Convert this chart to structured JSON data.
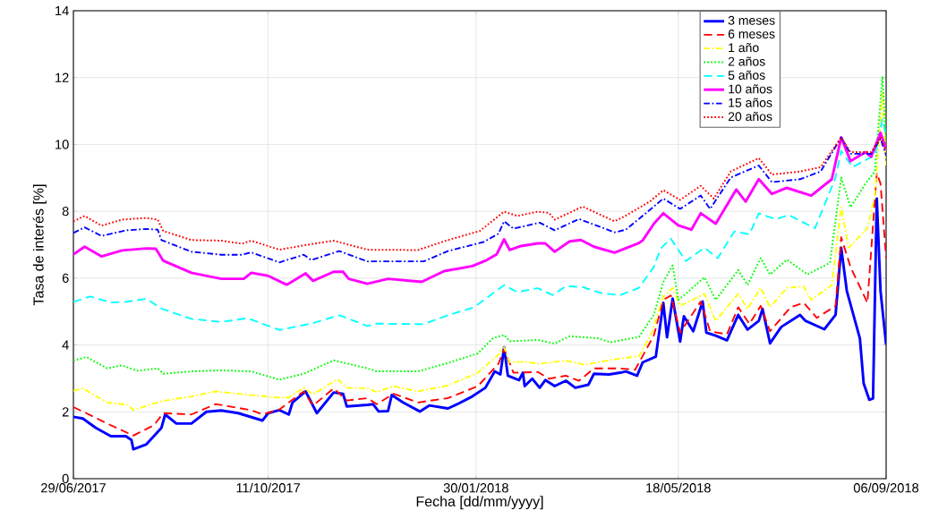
{
  "chart_data": {
    "type": "line",
    "xlabel": "Fecha [dd/mm/yyyy]",
    "ylabel": "Tasa de interés [%]",
    "xlim": [
      "2017-06-29",
      "2018-09-06"
    ],
    "xticks": [
      {
        "value": "2017-06-29",
        "label": "29/06/2017"
      },
      {
        "value": "2017-10-11",
        "label": "11/10/2017"
      },
      {
        "value": "2018-01-30",
        "label": "30/01/2018"
      },
      {
        "value": "2018-05-18",
        "label": "18/05/2018"
      },
      {
        "value": "2018-09-06",
        "label": "06/09/2018"
      }
    ],
    "ylim": [
      0,
      14
    ],
    "yticks": [
      0,
      2,
      4,
      6,
      8,
      10,
      12,
      14
    ],
    "grid": true,
    "legend": "top right",
    "series": [
      {
        "name": "3 meses",
        "color": "#0000ff",
        "line_style": "solid",
        "x": [
          "2017-06-29",
          "2017-07-04",
          "2017-07-11",
          "2017-07-19",
          "2017-07-27",
          "2017-07-30",
          "2017-07-31",
          "2017-08-07",
          "2017-08-15",
          "2017-08-17",
          "2017-08-23",
          "2017-08-31",
          "2017-09-08",
          "2017-09-16",
          "2017-09-25",
          "2017-10-08",
          "2017-10-11",
          "2017-10-17",
          "2017-10-22",
          "2017-10-24",
          "2017-10-31",
          "2017-11-06",
          "2017-11-15",
          "2017-11-20",
          "2017-11-22",
          "2017-12-03",
          "2017-12-06",
          "2017-12-09",
          "2017-12-14",
          "2017-12-16",
          "2017-12-22",
          "2017-12-31",
          "2018-01-05",
          "2018-01-15",
          "2018-01-20",
          "2018-01-28",
          "2018-02-04",
          "2018-02-09",
          "2018-02-12",
          "2018-02-14",
          "2018-02-16",
          "2018-02-22",
          "2018-02-24",
          "2018-02-25",
          "2018-03-01",
          "2018-03-05",
          "2018-03-08",
          "2018-03-13",
          "2018-03-19",
          "2018-03-24",
          "2018-03-31",
          "2018-04-03",
          "2018-04-11",
          "2018-04-17",
          "2018-04-20",
          "2018-04-26",
          "2018-04-29",
          "2018-05-06",
          "2018-05-10",
          "2018-05-12",
          "2018-05-15",
          "2018-05-19",
          "2018-05-21",
          "2018-05-26",
          "2018-05-31",
          "2018-06-02",
          "2018-06-07",
          "2018-06-13",
          "2018-06-19",
          "2018-06-24",
          "2018-06-30",
          "2018-07-02",
          "2018-07-06",
          "2018-07-12",
          "2018-07-22",
          "2018-07-25",
          "2018-08-04",
          "2018-08-10",
          "2018-08-13",
          "2018-08-16",
          "2018-08-23",
          "2018-08-25",
          "2018-08-28",
          "2018-08-30",
          "2018-09-01",
          "2018-09-03",
          "2018-09-06"
        ],
        "values": [
          1.85,
          1.8,
          1.52,
          1.27,
          1.27,
          1.16,
          0.88,
          1.03,
          1.52,
          1.92,
          1.65,
          1.65,
          2.0,
          2.04,
          1.96,
          1.74,
          1.96,
          2.05,
          1.92,
          2.28,
          2.61,
          1.96,
          2.58,
          2.54,
          2.16,
          2.21,
          2.23,
          2.01,
          2.02,
          2.5,
          2.28,
          2.01,
          2.19,
          2.1,
          2.23,
          2.46,
          2.72,
          3.21,
          3.12,
          3.93,
          3.08,
          2.95,
          3.17,
          2.77,
          2.99,
          2.72,
          2.95,
          2.77,
          2.93,
          2.72,
          2.81,
          3.14,
          3.12,
          3.17,
          3.21,
          3.08,
          3.48,
          3.65,
          5.26,
          4.23,
          5.39,
          4.1,
          4.86,
          4.41,
          5.3,
          4.37,
          4.28,
          4.14,
          4.9,
          4.46,
          4.72,
          5.08,
          4.05,
          4.54,
          4.9,
          4.72,
          4.47,
          4.9,
          6.91,
          5.62,
          4.19,
          2.85,
          2.36,
          2.4,
          8.38,
          5.62,
          4.01
        ]
      },
      {
        "name": "6 meses",
        "color": "#ff0000",
        "line_style": "dashed",
        "x": [
          "2017-06-29",
          "2017-07-04",
          "2017-07-17",
          "2017-07-31",
          "2017-08-11",
          "2017-08-16",
          "2017-08-31",
          "2017-09-13",
          "2017-10-02",
          "2017-10-08",
          "2017-10-17",
          "2017-10-30",
          "2017-11-04",
          "2017-11-15",
          "2017-11-22",
          "2017-12-03",
          "2017-12-08",
          "2017-12-17",
          "2017-12-30",
          "2018-01-15",
          "2018-01-31",
          "2018-02-11",
          "2018-02-14",
          "2018-02-19",
          "2018-03-04",
          "2018-03-10",
          "2018-03-19",
          "2018-03-26",
          "2018-04-03",
          "2018-04-16",
          "2018-04-25",
          "2018-05-05",
          "2018-05-10",
          "2018-05-14",
          "2018-05-19",
          "2018-05-30",
          "2018-06-04",
          "2018-06-13",
          "2018-06-19",
          "2018-06-25",
          "2018-07-01",
          "2018-07-06",
          "2018-07-17",
          "2018-07-24",
          "2018-07-31",
          "2018-08-10",
          "2018-08-13",
          "2018-08-18",
          "2018-08-27",
          "2018-09-01",
          "2018-09-03",
          "2018-09-06"
        ],
        "values": [
          2.14,
          2.01,
          1.65,
          1.29,
          1.6,
          1.96,
          1.92,
          2.23,
          2.05,
          1.92,
          2.07,
          2.61,
          2.19,
          2.7,
          2.34,
          2.41,
          2.23,
          2.54,
          2.28,
          2.41,
          2.77,
          3.44,
          3.88,
          3.17,
          3.19,
          2.99,
          3.08,
          2.93,
          3.3,
          3.3,
          3.26,
          4.29,
          5.35,
          5.48,
          4.37,
          5.3,
          4.41,
          4.32,
          5.13,
          4.63,
          5.17,
          4.41,
          5.13,
          5.26,
          4.81,
          5.17,
          7.22,
          6.33,
          5.26,
          9.14,
          8.83,
          6.6
        ]
      },
      {
        "name": "1 año",
        "color": "#ffff00",
        "line_style": "dashdot",
        "x": [
          "2017-06-29",
          "2017-07-04",
          "2017-07-17",
          "2017-07-28",
          "2017-07-31",
          "2017-08-15",
          "2017-08-31",
          "2017-09-13",
          "2017-10-02",
          "2017-10-15",
          "2017-10-22",
          "2017-10-30",
          "2017-11-04",
          "2017-11-17",
          "2017-11-22",
          "2017-12-03",
          "2017-12-08",
          "2017-12-17",
          "2017-12-30",
          "2018-01-15",
          "2018-01-31",
          "2018-02-11",
          "2018-02-14",
          "2018-02-17",
          "2018-02-25",
          "2018-03-04",
          "2018-03-19",
          "2018-03-29",
          "2018-04-14",
          "2018-04-27",
          "2018-05-04",
          "2018-05-10",
          "2018-05-15",
          "2018-05-19",
          "2018-06-01",
          "2018-06-07",
          "2018-06-19",
          "2018-06-24",
          "2018-07-01",
          "2018-07-06",
          "2018-07-15",
          "2018-07-24",
          "2018-07-28",
          "2018-08-08",
          "2018-08-13",
          "2018-08-17",
          "2018-08-27",
          "2018-08-31",
          "2018-09-04",
          "2018-09-06"
        ],
        "values": [
          2.63,
          2.7,
          2.28,
          2.21,
          2.05,
          2.32,
          2.46,
          2.61,
          2.5,
          2.43,
          2.43,
          2.72,
          2.52,
          2.98,
          2.72,
          2.7,
          2.59,
          2.77,
          2.61,
          2.79,
          3.17,
          3.71,
          3.93,
          3.48,
          3.5,
          3.44,
          3.53,
          3.41,
          3.57,
          3.66,
          4.38,
          5.44,
          5.71,
          5.17,
          5.53,
          4.72,
          5.53,
          5.08,
          5.71,
          5.13,
          5.71,
          5.75,
          5.35,
          5.79,
          8.12,
          6.91,
          7.49,
          8.47,
          11.55,
          9.37
        ]
      },
      {
        "name": "2 años",
        "color": "#00ff00",
        "line_style": "dotted",
        "x": [
          "2017-06-29",
          "2017-07-06",
          "2017-07-17",
          "2017-07-25",
          "2017-08-02",
          "2017-08-13",
          "2017-08-16",
          "2017-08-31",
          "2017-09-16",
          "2017-10-02",
          "2017-10-17",
          "2017-10-30",
          "2017-11-15",
          "2017-12-03",
          "2017-12-08",
          "2017-12-30",
          "2018-01-15",
          "2018-01-31",
          "2018-02-08",
          "2018-02-14",
          "2018-02-17",
          "2018-03-04",
          "2018-03-13",
          "2018-03-21",
          "2018-04-05",
          "2018-04-12",
          "2018-04-27",
          "2018-05-05",
          "2018-05-10",
          "2018-05-15",
          "2018-05-18",
          "2018-05-22",
          "2018-06-01",
          "2018-06-07",
          "2018-06-19",
          "2018-06-24",
          "2018-07-01",
          "2018-07-06",
          "2018-07-15",
          "2018-07-26",
          "2018-08-07",
          "2018-08-13",
          "2018-08-18",
          "2018-08-26",
          "2018-08-31",
          "2018-09-04",
          "2018-09-06"
        ],
        "values": [
          3.53,
          3.64,
          3.3,
          3.39,
          3.23,
          3.3,
          3.14,
          3.21,
          3.24,
          3.21,
          2.96,
          3.14,
          3.54,
          3.3,
          3.21,
          3.21,
          3.46,
          3.75,
          4.2,
          4.3,
          4.11,
          4.15,
          4.04,
          4.26,
          4.2,
          4.08,
          4.24,
          4.91,
          5.88,
          6.38,
          5.35,
          5.53,
          6.02,
          5.35,
          6.24,
          5.8,
          6.6,
          6.11,
          6.55,
          6.11,
          6.46,
          9.01,
          8.12,
          8.83,
          9.19,
          12.04,
          10.08
        ]
      },
      {
        "name": "5 años",
        "color": "#00ffff",
        "line_style": "dashed",
        "x": [
          "2017-06-29",
          "2017-07-08",
          "2017-07-19",
          "2017-07-27",
          "2017-08-07",
          "2017-08-15",
          "2017-08-31",
          "2017-09-16",
          "2017-09-30",
          "2017-10-17",
          "2017-11-03",
          "2017-11-18",
          "2017-12-03",
          "2017-12-08",
          "2018-01-02",
          "2018-01-15",
          "2018-01-29",
          "2018-02-14",
          "2018-02-21",
          "2018-03-04",
          "2018-03-12",
          "2018-03-19",
          "2018-03-28",
          "2018-04-07",
          "2018-04-17",
          "2018-04-27",
          "2018-05-05",
          "2018-05-06",
          "2018-05-09",
          "2018-05-14",
          "2018-05-22",
          "2018-06-01",
          "2018-06-08",
          "2018-06-17",
          "2018-06-25",
          "2018-06-30",
          "2018-07-09",
          "2018-07-16",
          "2018-07-25",
          "2018-07-30",
          "2018-08-10",
          "2018-08-13",
          "2018-08-19",
          "2018-08-31",
          "2018-09-04",
          "2018-09-06"
        ],
        "values": [
          5.29,
          5.45,
          5.27,
          5.29,
          5.38,
          5.09,
          4.78,
          4.69,
          4.8,
          4.45,
          4.64,
          4.89,
          4.57,
          4.64,
          4.62,
          4.89,
          5.13,
          5.79,
          5.58,
          5.7,
          5.49,
          5.76,
          5.73,
          5.55,
          5.49,
          5.71,
          6.34,
          6.51,
          6.91,
          7.18,
          6.51,
          6.91,
          6.6,
          7.4,
          7.31,
          7.94,
          7.76,
          7.89,
          7.63,
          7.49,
          9.01,
          9.81,
          9.32,
          9.68,
          10.75,
          10.26
        ]
      },
      {
        "name": "10 años",
        "color": "#ff00ff",
        "line_style": "solid",
        "x": [
          "2017-06-29",
          "2017-07-05",
          "2017-07-14",
          "2017-07-25",
          "2017-08-07",
          "2017-08-12",
          "2017-08-16",
          "2017-08-31",
          "2017-09-16",
          "2017-09-28",
          "2017-10-02",
          "2017-10-11",
          "2017-10-21",
          "2017-10-31",
          "2017-11-04",
          "2017-11-15",
          "2017-11-20",
          "2017-11-23",
          "2017-12-03",
          "2017-12-14",
          "2018-01-01",
          "2018-01-13",
          "2018-01-28",
          "2018-02-04",
          "2018-02-10",
          "2018-02-14",
          "2018-02-17",
          "2018-02-23",
          "2018-03-04",
          "2018-03-08",
          "2018-03-13",
          "2018-03-21",
          "2018-03-27",
          "2018-04-03",
          "2018-04-14",
          "2018-04-27",
          "2018-04-29",
          "2018-05-05",
          "2018-05-10",
          "2018-05-18",
          "2018-05-25",
          "2018-05-30",
          "2018-06-07",
          "2018-06-18",
          "2018-06-23",
          "2018-06-30",
          "2018-07-07",
          "2018-07-15",
          "2018-07-28",
          "2018-08-08",
          "2018-08-13",
          "2018-08-18",
          "2018-08-26",
          "2018-08-29",
          "2018-09-03",
          "2018-09-06"
        ],
        "values": [
          6.71,
          6.94,
          6.65,
          6.83,
          6.89,
          6.88,
          6.52,
          6.16,
          5.98,
          5.98,
          6.16,
          6.07,
          5.8,
          6.14,
          5.92,
          6.19,
          6.19,
          5.98,
          5.83,
          5.98,
          5.89,
          6.21,
          6.36,
          6.52,
          6.71,
          7.16,
          6.84,
          6.96,
          7.04,
          7.04,
          6.79,
          7.1,
          7.14,
          6.94,
          6.76,
          7.05,
          7.13,
          7.63,
          7.94,
          7.58,
          7.45,
          7.94,
          7.63,
          8.65,
          8.29,
          8.96,
          8.52,
          8.7,
          8.47,
          8.96,
          10.21,
          9.5,
          9.77,
          9.63,
          10.35,
          9.86
        ]
      },
      {
        "name": "15 años",
        "color": "#0000ff",
        "line_style": "dashdot",
        "x": [
          "2017-06-29",
          "2017-07-05",
          "2017-07-14",
          "2017-07-27",
          "2017-08-07",
          "2017-08-13",
          "2017-08-15",
          "2017-08-31",
          "2017-09-16",
          "2017-09-27",
          "2017-10-02",
          "2017-10-17",
          "2017-10-30",
          "2017-11-03",
          "2017-11-18",
          "2017-12-03",
          "2018-01-02",
          "2018-01-15",
          "2018-02-03",
          "2018-02-11",
          "2018-02-14",
          "2018-02-19",
          "2018-03-05",
          "2018-03-13",
          "2018-03-26",
          "2018-04-14",
          "2018-04-20",
          "2018-05-03",
          "2018-05-10",
          "2018-05-19",
          "2018-05-30",
          "2018-06-04",
          "2018-06-15",
          "2018-06-30",
          "2018-07-07",
          "2018-07-22",
          "2018-08-02",
          "2018-08-13",
          "2018-08-18",
          "2018-08-29",
          "2018-09-03",
          "2018-09-06"
        ],
        "values": [
          7.35,
          7.52,
          7.26,
          7.43,
          7.47,
          7.45,
          7.14,
          6.79,
          6.7,
          6.7,
          6.77,
          6.47,
          6.7,
          6.54,
          6.81,
          6.5,
          6.5,
          6.81,
          7.08,
          7.33,
          7.7,
          7.48,
          7.66,
          7.43,
          7.77,
          7.37,
          7.45,
          8.05,
          8.38,
          8.07,
          8.47,
          8.07,
          9.01,
          9.37,
          8.87,
          8.96,
          9.19,
          10.21,
          9.72,
          9.72,
          10.17,
          9.68
        ]
      },
      {
        "name": "20 años",
        "color": "#ff0000",
        "line_style": "dotted",
        "x": [
          "2017-06-29",
          "2017-07-05",
          "2017-07-14",
          "2017-07-25",
          "2017-08-07",
          "2017-08-13",
          "2017-08-16",
          "2017-08-31",
          "2017-09-16",
          "2017-09-27",
          "2017-10-02",
          "2017-10-17",
          "2017-10-30",
          "2017-11-15",
          "2017-12-03",
          "2017-12-30",
          "2018-01-15",
          "2018-02-01",
          "2018-02-14",
          "2018-02-21",
          "2018-03-04",
          "2018-03-10",
          "2018-03-13",
          "2018-03-28",
          "2018-04-14",
          "2018-04-20",
          "2018-05-03",
          "2018-05-10",
          "2018-05-19",
          "2018-05-30",
          "2018-06-06",
          "2018-06-15",
          "2018-06-30",
          "2018-07-07",
          "2018-07-22",
          "2018-08-02",
          "2018-08-13",
          "2018-08-18",
          "2018-08-29",
          "2018-09-03",
          "2018-09-06"
        ],
        "values": [
          7.7,
          7.86,
          7.57,
          7.75,
          7.8,
          7.75,
          7.41,
          7.14,
          7.12,
          7.03,
          7.12,
          6.85,
          6.98,
          7.12,
          6.85,
          6.84,
          7.14,
          7.41,
          7.99,
          7.86,
          7.99,
          7.95,
          7.75,
          8.14,
          7.7,
          7.87,
          8.3,
          8.63,
          8.34,
          8.76,
          8.38,
          9.19,
          9.59,
          9.1,
          9.19,
          9.32,
          10.21,
          9.77,
          9.77,
          10.21,
          9.81
        ]
      }
    ]
  }
}
